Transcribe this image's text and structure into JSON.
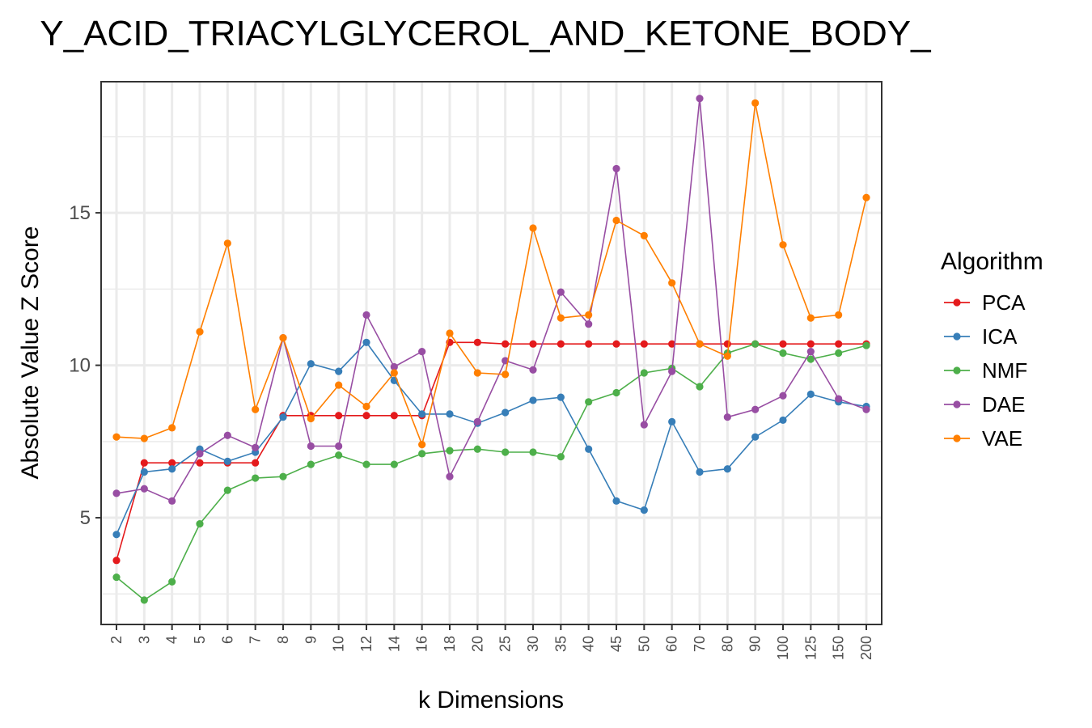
{
  "chart_data": {
    "type": "line",
    "title": "Y_ACID_TRIACYLGLYCEROL_AND_KETONE_BODY_",
    "xlabel": "k Dimensions",
    "ylabel": "Absolute Value Z Score",
    "categories": [
      "2",
      "3",
      "4",
      "5",
      "6",
      "7",
      "8",
      "9",
      "10",
      "12",
      "14",
      "16",
      "18",
      "20",
      "25",
      "30",
      "35",
      "40",
      "45",
      "50",
      "60",
      "70",
      "80",
      "90",
      "100",
      "125",
      "150",
      "200"
    ],
    "ylim": [
      1.5,
      19.3
    ],
    "yticks": [
      5,
      10,
      15
    ],
    "grid": true,
    "legend": {
      "title": "Algorithm",
      "position": "right"
    },
    "series": [
      {
        "name": "PCA",
        "color": "#e41a1c",
        "values": [
          3.6,
          6.8,
          6.8,
          6.8,
          6.8,
          6.8,
          8.35,
          8.35,
          8.35,
          8.35,
          8.35,
          8.35,
          10.75,
          10.75,
          10.7,
          10.7,
          10.7,
          10.7,
          10.7,
          10.7,
          10.7,
          10.7,
          10.7,
          10.7,
          10.7,
          10.7,
          10.7,
          10.7
        ]
      },
      {
        "name": "ICA",
        "color": "#377eb8",
        "values": [
          4.45,
          6.5,
          6.6,
          7.25,
          6.85,
          7.15,
          8.3,
          10.05,
          9.8,
          10.75,
          9.5,
          8.4,
          8.4,
          8.1,
          8.45,
          8.85,
          8.95,
          7.25,
          5.55,
          5.25,
          8.15,
          6.5,
          6.6,
          7.65,
          8.2,
          9.05,
          8.8,
          8.65
        ]
      },
      {
        "name": "NMF",
        "color": "#4daf4a",
        "values": [
          3.05,
          2.3,
          2.9,
          4.8,
          5.9,
          6.3,
          6.35,
          6.75,
          7.05,
          6.75,
          6.75,
          7.1,
          7.2,
          7.25,
          7.15,
          7.15,
          7.0,
          8.8,
          9.1,
          9.75,
          9.9,
          9.3,
          10.4,
          10.7,
          10.4,
          10.2,
          10.4,
          10.65
        ]
      },
      {
        "name": "DAE",
        "color": "#984ea3",
        "values": [
          5.8,
          5.95,
          5.55,
          7.1,
          7.7,
          7.3,
          10.9,
          7.35,
          7.35,
          11.65,
          9.95,
          10.45,
          6.35,
          8.15,
          10.15,
          9.85,
          12.4,
          11.35,
          16.45,
          8.05,
          9.8,
          18.75,
          8.3,
          8.55,
          9.0,
          10.45,
          8.9,
          8.55
        ]
      },
      {
        "name": "VAE",
        "color": "#ff7f00",
        "values": [
          7.65,
          7.6,
          7.95,
          11.1,
          14.0,
          8.55,
          10.9,
          8.25,
          9.35,
          8.65,
          9.75,
          7.4,
          11.05,
          9.75,
          9.7,
          14.5,
          11.55,
          11.65,
          14.75,
          14.25,
          12.7,
          10.7,
          10.3,
          18.6,
          13.95,
          11.55,
          11.65,
          15.5
        ]
      }
    ]
  }
}
